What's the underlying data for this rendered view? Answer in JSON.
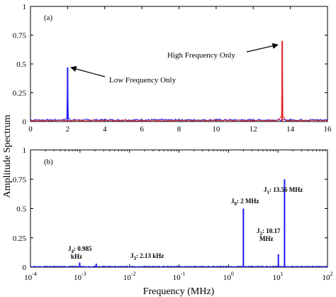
{
  "figure": {
    "ylabel": "Amplitude Spectrum",
    "xlabel": "Frequency (MHz)"
  },
  "chart_data": [
    {
      "type": "line",
      "panel_tag": "(a)",
      "x_scale": "linear",
      "xlim": [
        0,
        16
      ],
      "ylim": [
        0,
        1
      ],
      "x_ticks": [
        "0",
        "2",
        "4",
        "6",
        "8",
        "10",
        "12",
        "14",
        "16"
      ],
      "y_ticks": [
        "0",
        "0.25",
        "0.5",
        "0.75",
        "1"
      ],
      "grid": false,
      "series": [
        {
          "color": "#1a1aff",
          "peaks": [
            {
              "x": 2.0,
              "y": 0.47
            }
          ],
          "baseline": 0.015
        },
        {
          "color": "#e82020",
          "peaks": [
            {
              "x": 13.56,
              "y": 0.7
            }
          ],
          "baseline": 0.01
        }
      ],
      "annotations": [
        {
          "text": "Low Frequency Only",
          "points_to": {
            "x": 2.0,
            "y": 0.47
          }
        },
        {
          "text": "High Frequency Only",
          "points_to": {
            "x": 13.56,
            "y": 0.7
          }
        }
      ]
    },
    {
      "type": "line",
      "panel_tag": "(b)",
      "x_scale": "log",
      "xlim": [
        0.0001,
        100
      ],
      "ylim": [
        0,
        1
      ],
      "x_ticks": [
        "-4",
        "-3",
        "-2",
        "-1",
        "0",
        "1",
        "2"
      ],
      "y_ticks": [
        "0",
        "0.25",
        "0.5",
        "0.75",
        "1"
      ],
      "grid": false,
      "color": "#1a1aff",
      "peaks": [
        {
          "label_parts": [
            "J",
            "4",
            ": 0.985",
            "kHz"
          ],
          "x": 0.000985,
          "y": 0.04
        },
        {
          "label_parts": [
            "J",
            "3",
            ": 2.13 kHz"
          ],
          "x": 0.00213,
          "y": 0.03
        },
        {
          "label_parts": [
            "J",
            "0",
            ": 2 MHz"
          ],
          "x": 2.0,
          "y": 0.5
        },
        {
          "label_parts": [
            "J",
            "2",
            ": 10.17",
            "MHz"
          ],
          "x": 10.17,
          "y": 0.11
        },
        {
          "label_parts": [
            "J",
            "1",
            ": 13.56 MHz"
          ],
          "x": 13.56,
          "y": 0.75
        }
      ]
    }
  ]
}
